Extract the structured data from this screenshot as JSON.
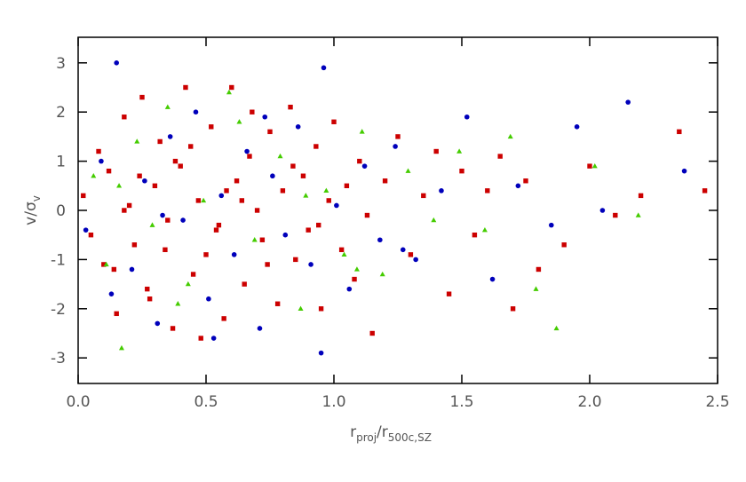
{
  "chart_data": {
    "type": "scatter",
    "xlabel": [
      "r",
      "proj",
      "/r",
      "500c,SZ"
    ],
    "ylabel": [
      "v/σ",
      "v"
    ],
    "xlim": [
      0,
      2.5
    ],
    "ylim": [
      -3.52,
      3.52
    ],
    "xticks": [
      {
        "value": 0,
        "label": "0.0"
      },
      0.5,
      {
        "value": 1,
        "label": "1.0"
      },
      1.5,
      {
        "value": 2,
        "label": "2.0"
      },
      2.5
    ],
    "yticks": [
      -3,
      -2,
      -1,
      0,
      1,
      2,
      3
    ],
    "series": [
      {
        "color": "#cc0000",
        "marker": "square",
        "x": [
          0.02,
          0.05,
          0.08,
          0.1,
          0.12,
          0.15,
          0.18,
          0.2,
          0.22,
          0.25,
          0.27,
          0.3,
          0.32,
          0.35,
          0.37,
          0.4,
          0.42,
          0.45,
          0.47,
          0.5,
          0.52,
          0.55,
          0.57,
          0.6,
          0.62,
          0.65,
          0.67,
          0.7,
          0.72,
          0.75,
          0.78,
          0.8,
          0.83,
          0.85,
          0.88,
          0.9,
          0.93,
          0.95,
          0.98,
          1.0,
          1.03,
          1.05,
          1.08,
          1.1,
          1.13,
          1.15,
          1.2,
          1.25,
          1.3,
          1.35,
          1.4,
          1.45,
          1.5,
          1.55,
          1.6,
          1.65,
          1.7,
          1.75,
          1.8,
          1.9,
          2.0,
          2.1,
          2.2,
          2.35,
          2.45,
          0.14,
          0.24,
          0.34,
          0.44,
          0.54,
          0.64,
          0.74,
          0.84,
          0.94,
          0.28,
          0.38,
          0.48,
          0.58,
          0.68,
          0.18
        ],
        "values": [
          0.3,
          -0.5,
          1.2,
          -1.1,
          0.8,
          -2.1,
          1.9,
          0.1,
          -0.7,
          2.3,
          -1.6,
          0.5,
          1.4,
          -0.2,
          -2.4,
          0.9,
          2.5,
          -1.3,
          0.2,
          -0.9,
          1.7,
          -0.3,
          -2.2,
          2.5,
          0.6,
          -1.5,
          1.1,
          0.0,
          -0.6,
          1.6,
          -1.9,
          0.4,
          2.1,
          -1.0,
          0.7,
          -0.4,
          1.3,
          -2.0,
          0.2,
          1.8,
          -0.8,
          0.5,
          -1.4,
          1.0,
          -0.1,
          -2.5,
          0.6,
          1.5,
          -0.9,
          0.3,
          1.2,
          -1.7,
          0.8,
          -0.5,
          0.4,
          1.1,
          -2.0,
          0.6,
          -1.2,
          -0.7,
          0.9,
          -0.1,
          0.3,
          1.6,
          0.4,
          -1.2,
          0.7,
          -0.8,
          1.3,
          -0.4,
          0.2,
          -1.1,
          0.9,
          -0.3,
          -1.8,
          1.0,
          -2.6,
          0.4,
          2.0,
          0.0
        ]
      },
      {
        "color": "#0000bb",
        "marker": "circle",
        "x": [
          0.03,
          0.09,
          0.15,
          0.21,
          0.26,
          0.31,
          0.36,
          0.41,
          0.46,
          0.51,
          0.56,
          0.61,
          0.66,
          0.71,
          0.76,
          0.81,
          0.86,
          0.91,
          0.96,
          1.01,
          1.06,
          1.12,
          1.18,
          1.24,
          1.32,
          1.42,
          1.52,
          1.62,
          1.72,
          1.85,
          1.95,
          2.05,
          2.15,
          2.37,
          0.13,
          0.33,
          0.53,
          0.73,
          0.95,
          1.27
        ],
        "values": [
          -0.4,
          1.0,
          3.0,
          -1.2,
          0.6,
          -2.3,
          1.5,
          -0.2,
          2.0,
          -1.8,
          0.3,
          -0.9,
          1.2,
          -2.4,
          0.7,
          -0.5,
          1.7,
          -1.1,
          2.9,
          0.1,
          -1.6,
          0.9,
          -0.6,
          1.3,
          -1.0,
          0.4,
          1.9,
          -1.4,
          0.5,
          -0.3,
          1.7,
          0.0,
          2.2,
          0.8,
          -1.7,
          -0.1,
          -2.6,
          1.9,
          -2.9,
          -0.8
        ]
      },
      {
        "color": "#44cc00",
        "marker": "triangle",
        "x": [
          0.06,
          0.11,
          0.17,
          0.23,
          0.29,
          0.35,
          0.43,
          0.49,
          0.59,
          0.69,
          0.79,
          0.87,
          0.97,
          1.04,
          1.11,
          1.19,
          1.29,
          1.39,
          1.49,
          1.59,
          1.69,
          1.79,
          1.87,
          2.02,
          2.19,
          0.16,
          0.39,
          0.63,
          0.89,
          1.09
        ],
        "values": [
          0.7,
          -1.1,
          -2.8,
          1.4,
          -0.3,
          2.1,
          -1.5,
          0.2,
          2.4,
          -0.6,
          1.1,
          -2.0,
          0.4,
          -0.9,
          1.6,
          -1.3,
          0.8,
          -0.2,
          1.2,
          -0.4,
          1.5,
          -1.6,
          -2.4,
          0.9,
          -0.1,
          0.5,
          -1.9,
          1.8,
          0.3,
          -1.2
        ]
      }
    ]
  }
}
